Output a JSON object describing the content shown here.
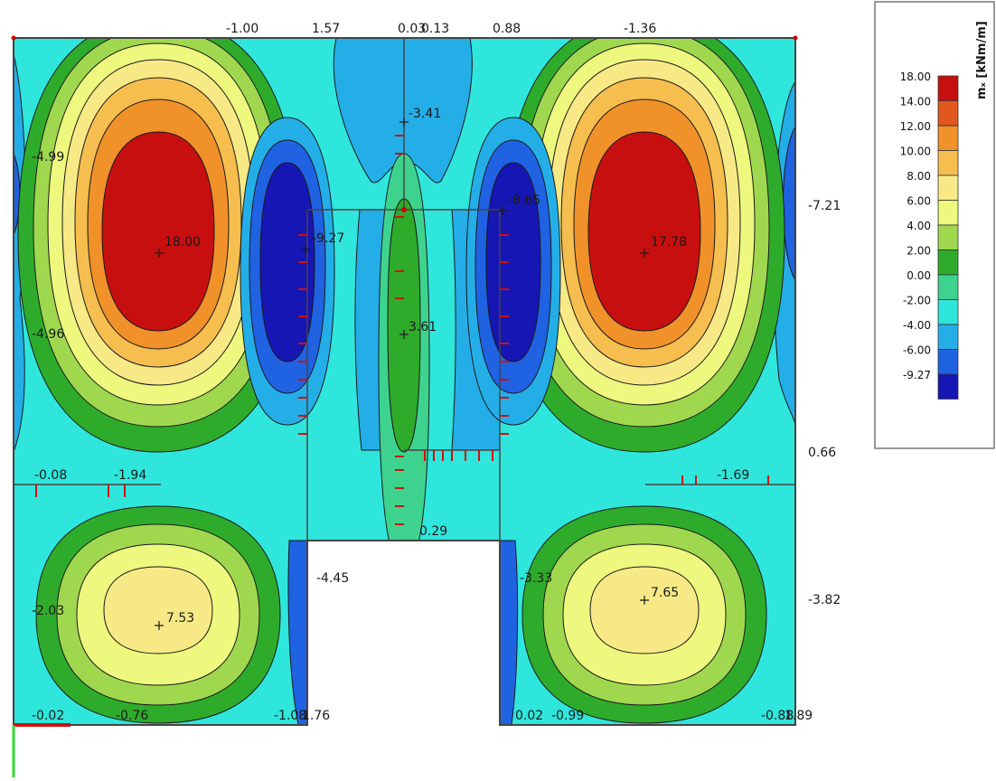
{
  "legend": {
    "title": "mₓ [kNm/m]",
    "levels": [
      {
        "label": "18.00",
        "color": "#c80f0f"
      },
      {
        "label": "14.00",
        "color": "#e2571e"
      },
      {
        "label": "12.00",
        "color": "#f0912a"
      },
      {
        "label": "10.00",
        "color": "#f6be4e"
      },
      {
        "label": "8.00",
        "color": "#f7ea86"
      },
      {
        "label": "6.00",
        "color": "#eef77e"
      },
      {
        "label": "4.00",
        "color": "#9fd84f"
      },
      {
        "label": "2.00",
        "color": "#2fab2c"
      },
      {
        "label": "0.00",
        "color": "#3dd38e"
      },
      {
        "label": "-2.00",
        "color": "#2fe6dc"
      },
      {
        "label": "-4.00",
        "color": "#24aee8"
      },
      {
        "label": "-6.00",
        "color": "#1f62e2"
      },
      {
        "label": "-9.27",
        "color": "#1616b4"
      }
    ]
  },
  "value_labels": {
    "top": [
      "-1.00",
      "1.57",
      "0.03",
      "0.13",
      "0.88",
      "-1.36"
    ],
    "left_edge": [
      "-4.99",
      "-4.96",
      "-2.03"
    ],
    "right_edge": [
      "-7.21",
      "0.66",
      "-3.82"
    ],
    "bottom": [
      "-0.02",
      "-0.76",
      "-1.08",
      "1.76",
      "0.02",
      "-0.99",
      "-0.88",
      "1.89"
    ],
    "middle_row": [
      "-0.08",
      "-1.94",
      "-1.69"
    ],
    "extremes": [
      "18.00",
      "17.78",
      "-9.27",
      "-8.65",
      "3.61",
      "-3.41",
      "7.53",
      "7.65"
    ],
    "cutout": [
      "-4.45",
      "0.29",
      "-3.33"
    ]
  }
}
